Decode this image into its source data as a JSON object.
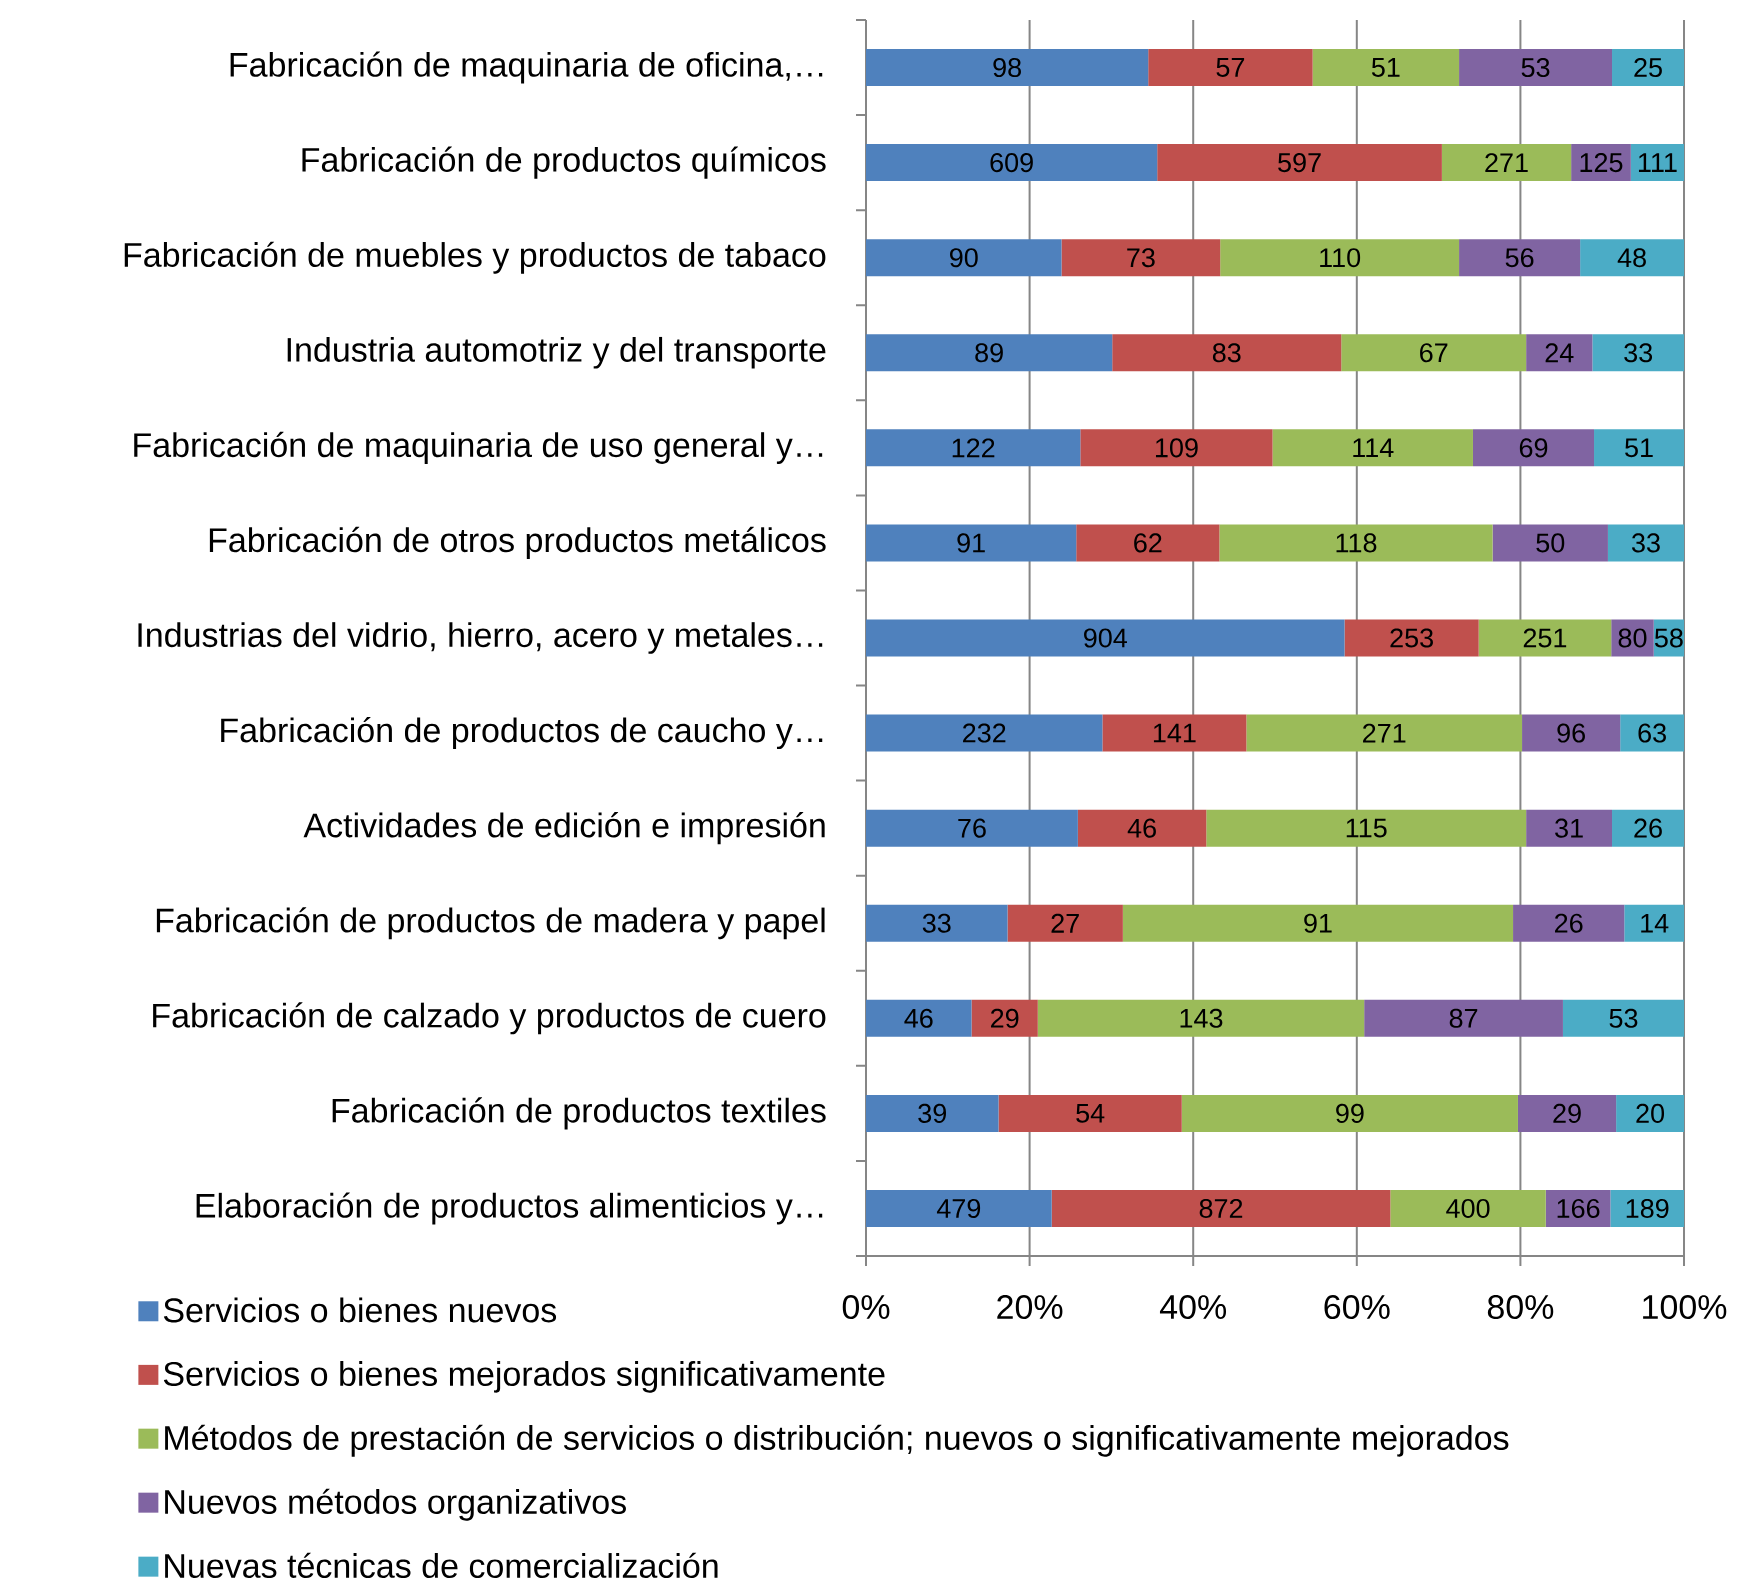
{
  "chart_data": {
    "type": "bar",
    "orientation": "horizontal",
    "stacked": true,
    "categories": [
      "Fabricación de maquinaria de oficina,…",
      "Fabricación de productos químicos",
      "Fabricación de muebles y productos de tabaco",
      "Industria automotriz y del transporte",
      "Fabricación de maquinaria de uso general y…",
      "Fabricación de otros productos metálicos",
      "Industrias del vidrio, hierro, acero y metales…",
      "Fabricación de productos de caucho y…",
      "Actividades de edición e impresión",
      "Fabricación de productos de madera y papel",
      "Fabricación de calzado y productos de cuero",
      "Fabricación de productos textiles",
      "Elaboración de productos alimenticios y…"
    ],
    "series": [
      {
        "name": "Servicios o bienes nuevos",
        "color": "#4f81bd",
        "values": [
          34.5,
          35.6,
          23.9,
          30.1,
          26.2,
          25.7,
          58.5,
          28.9,
          25.9,
          17.3,
          12.9,
          16.2,
          22.7
        ]
      },
      {
        "name": "Servicios o bienes mejorados significativamente",
        "color": "#c0504d",
        "values": [
          20.1,
          34.8,
          19.4,
          28.0,
          23.5,
          17.5,
          16.4,
          17.6,
          15.7,
          14.1,
          8.1,
          22.4,
          41.4
        ]
      },
      {
        "name": "Métodos de prestación de servicios o distribución; nuevos o significativamente mejorados",
        "color": "#9bbb59",
        "values": [
          17.9,
          15.8,
          29.2,
          22.6,
          24.5,
          33.4,
          16.2,
          33.7,
          39.1,
          47.7,
          39.9,
          41.1,
          19.0
        ]
      },
      {
        "name": "Nuevos métodos organizativos",
        "color": "#8064a2",
        "values": [
          18.7,
          7.3,
          14.8,
          8.1,
          14.8,
          14.1,
          5.2,
          12.0,
          10.5,
          13.6,
          24.3,
          12.0,
          7.9
        ]
      },
      {
        "name": "Nuevas técnicas de comercialización",
        "color": "#4bacc6",
        "values": [
          8.8,
          6.5,
          12.7,
          11.2,
          11.0,
          9.3,
          3.7,
          7.8,
          8.8,
          7.3,
          14.8,
          8.3,
          9.0
        ]
      }
    ],
    "annotations": [
      "98",
      "57",
      "51",
      "53",
      "25",
      "609",
      "597",
      "271",
      "125",
      "111",
      "90",
      "73",
      "110",
      "56",
      "48",
      "89",
      "83",
      "67",
      "24",
      "33",
      "122",
      "109",
      "114",
      "69",
      "51",
      "91",
      "62",
      "118",
      "50",
      "33",
      "904",
      "253",
      "251",
      "80",
      "58",
      "232",
      "141",
      "271",
      "96",
      "63",
      "76",
      "46",
      "115",
      "31",
      "26",
      "33",
      "27",
      "91",
      "26",
      "14",
      "46",
      "29",
      "143",
      "87",
      "53",
      "39",
      "54",
      "99",
      "29",
      "20",
      "479",
      "872",
      "400",
      "166",
      "189"
    ],
    "xlim": [
      0,
      100
    ],
    "xticks": [
      {
        "value": 0,
        "label": "0%"
      },
      {
        "value": 20,
        "label": "20%"
      },
      {
        "value": 40,
        "label": "40%"
      },
      {
        "value": 60,
        "label": "60%"
      },
      {
        "value": 80,
        "label": "80%"
      },
      {
        "value": 100,
        "label": "100%"
      }
    ],
    "grid": "x",
    "legend": "bottom left"
  }
}
